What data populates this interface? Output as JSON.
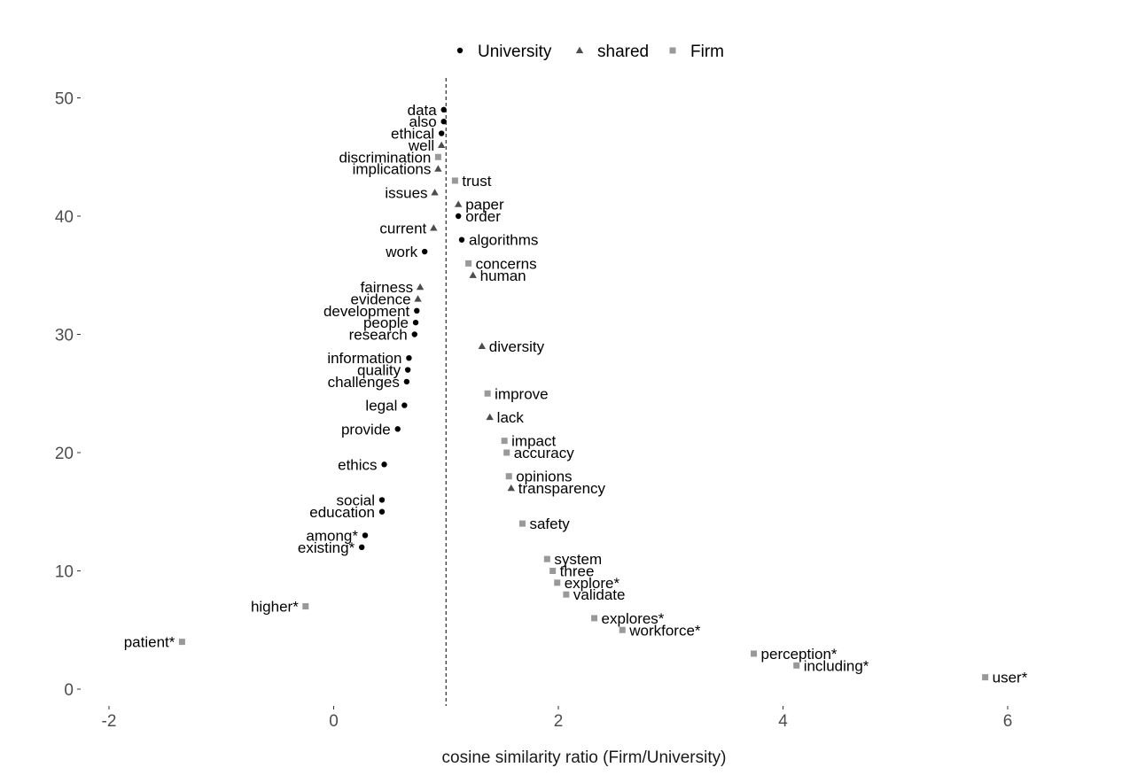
{
  "chart_data": {
    "type": "scatter",
    "xlabel": "cosine similarity ratio (Firm/University)",
    "ylabel": "",
    "xlim": [
      -2.2,
      6.5
    ],
    "ylim": [
      -1,
      51.5
    ],
    "xticks": [
      -2,
      0,
      2,
      4,
      6
    ],
    "yticks": [
      0,
      10,
      20,
      30,
      40,
      50
    ],
    "reference_line_x": 1,
    "legend_position": "top",
    "grid": false,
    "groups": [
      {
        "name": "University",
        "shape": "circle",
        "color": "#000000"
      },
      {
        "name": "shared",
        "shape": "triangle",
        "color": "#4d4d4d"
      },
      {
        "name": "Firm",
        "shape": "square",
        "color": "#999999"
      }
    ],
    "points": [
      {
        "label": "data",
        "x": 0.98,
        "y": 49,
        "group": "University"
      },
      {
        "label": "also",
        "x": 0.98,
        "y": 48,
        "group": "University"
      },
      {
        "label": "ethical",
        "x": 0.96,
        "y": 47,
        "group": "University"
      },
      {
        "label": "well",
        "x": 0.96,
        "y": 46,
        "group": "shared"
      },
      {
        "label": "discrimination",
        "x": 0.93,
        "y": 45,
        "group": "Firm"
      },
      {
        "label": "implications",
        "x": 0.93,
        "y": 44,
        "group": "shared"
      },
      {
        "label": "trust",
        "x": 1.08,
        "y": 43,
        "group": "Firm"
      },
      {
        "label": "issues",
        "x": 0.9,
        "y": 42,
        "group": "shared"
      },
      {
        "label": "paper",
        "x": 1.11,
        "y": 41,
        "group": "shared"
      },
      {
        "label": "order",
        "x": 1.11,
        "y": 40,
        "group": "University"
      },
      {
        "label": "current",
        "x": 0.89,
        "y": 39,
        "group": "shared"
      },
      {
        "label": "algorithms",
        "x": 1.14,
        "y": 38,
        "group": "University"
      },
      {
        "label": "work",
        "x": 0.81,
        "y": 37,
        "group": "University"
      },
      {
        "label": "concerns",
        "x": 1.2,
        "y": 36,
        "group": "Firm"
      },
      {
        "label": "human",
        "x": 1.24,
        "y": 35,
        "group": "shared"
      },
      {
        "label": "fairness",
        "x": 0.77,
        "y": 34,
        "group": "shared"
      },
      {
        "label": "evidence",
        "x": 0.75,
        "y": 33,
        "group": "shared"
      },
      {
        "label": "development",
        "x": 0.74,
        "y": 32,
        "group": "University"
      },
      {
        "label": "people",
        "x": 0.73,
        "y": 31,
        "group": "University"
      },
      {
        "label": "research",
        "x": 0.72,
        "y": 30,
        "group": "University"
      },
      {
        "label": "diversity",
        "x": 1.32,
        "y": 29,
        "group": "shared"
      },
      {
        "label": "information",
        "x": 0.67,
        "y": 28,
        "group": "University"
      },
      {
        "label": "quality",
        "x": 0.66,
        "y": 27,
        "group": "University"
      },
      {
        "label": "challenges",
        "x": 0.65,
        "y": 26,
        "group": "University"
      },
      {
        "label": "improve",
        "x": 1.37,
        "y": 25,
        "group": "Firm"
      },
      {
        "label": "legal",
        "x": 0.63,
        "y": 24,
        "group": "University"
      },
      {
        "label": "lack",
        "x": 1.39,
        "y": 23,
        "group": "shared"
      },
      {
        "label": "provide",
        "x": 0.57,
        "y": 22,
        "group": "University"
      },
      {
        "label": "impact",
        "x": 1.52,
        "y": 21,
        "group": "Firm"
      },
      {
        "label": "accuracy",
        "x": 1.54,
        "y": 20,
        "group": "Firm"
      },
      {
        "label": "ethics",
        "x": 0.45,
        "y": 19,
        "group": "University"
      },
      {
        "label": "opinions",
        "x": 1.56,
        "y": 18,
        "group": "Firm"
      },
      {
        "label": "transparency",
        "x": 1.58,
        "y": 17,
        "group": "shared"
      },
      {
        "label": "social",
        "x": 0.43,
        "y": 16,
        "group": "University"
      },
      {
        "label": "education",
        "x": 0.43,
        "y": 15,
        "group": "University"
      },
      {
        "label": "safety",
        "x": 1.68,
        "y": 14,
        "group": "Firm"
      },
      {
        "label": "among*",
        "x": 0.28,
        "y": 13,
        "group": "University"
      },
      {
        "label": "existing*",
        "x": 0.25,
        "y": 12,
        "group": "University"
      },
      {
        "label": "system",
        "x": 1.9,
        "y": 11,
        "group": "Firm"
      },
      {
        "label": "three",
        "x": 1.95,
        "y": 10,
        "group": "Firm"
      },
      {
        "label": "explore*",
        "x": 1.99,
        "y": 9,
        "group": "Firm"
      },
      {
        "label": "validate",
        "x": 2.07,
        "y": 8,
        "group": "Firm"
      },
      {
        "label": "higher*",
        "x": -0.25,
        "y": 7,
        "group": "Firm"
      },
      {
        "label": "explores*",
        "x": 2.32,
        "y": 6,
        "group": "Firm"
      },
      {
        "label": "workforce*",
        "x": 2.57,
        "y": 5,
        "group": "Firm"
      },
      {
        "label": "patient*",
        "x": -1.35,
        "y": 4,
        "group": "Firm"
      },
      {
        "label": "perception*",
        "x": 3.74,
        "y": 3,
        "group": "Firm"
      },
      {
        "label": "including*",
        "x": 4.12,
        "y": 2,
        "group": "Firm"
      },
      {
        "label": "user*",
        "x": 5.8,
        "y": 1,
        "group": "Firm"
      }
    ]
  }
}
